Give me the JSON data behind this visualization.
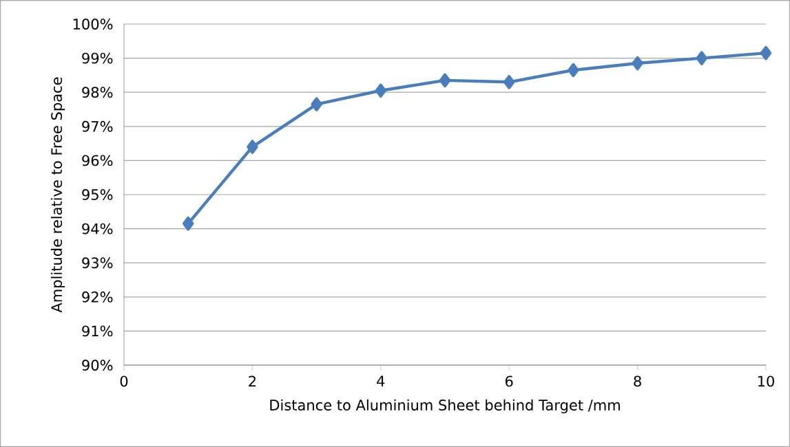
{
  "chart_data": {
    "type": "line",
    "xlabel": "Distance to Aluminium Sheet behind Target /mm",
    "ylabel": "Amplitude relative to Free Space",
    "x": [
      1,
      2,
      3,
      4,
      5,
      6,
      7,
      8,
      9,
      10
    ],
    "series": [
      {
        "color": "#4a7ebb",
        "values": [
          94.15,
          96.4,
          97.65,
          98.05,
          98.35,
          98.3,
          98.65,
          98.85,
          99.0,
          99.15
        ]
      }
    ],
    "xlim": [
      0,
      10
    ],
    "xticks": [
      0,
      2,
      4,
      6,
      8,
      10
    ],
    "ylim": [
      90,
      100
    ],
    "yticks": [
      {
        "value": 90,
        "label": "90%"
      },
      {
        "value": 91,
        "label": "91%"
      },
      {
        "value": 92,
        "label": "92%"
      },
      {
        "value": 93,
        "label": "93%"
      },
      {
        "value": 94,
        "label": "94%"
      },
      {
        "value": 95,
        "label": "95%"
      },
      {
        "value": 96,
        "label": "96%"
      },
      {
        "value": 97,
        "label": "97%"
      },
      {
        "value": 98,
        "label": "98%"
      },
      {
        "value": 99,
        "label": "99%"
      },
      {
        "value": 100,
        "label": "100%"
      }
    ],
    "grid": "y",
    "marker": "diamond",
    "line_style": "solid"
  }
}
